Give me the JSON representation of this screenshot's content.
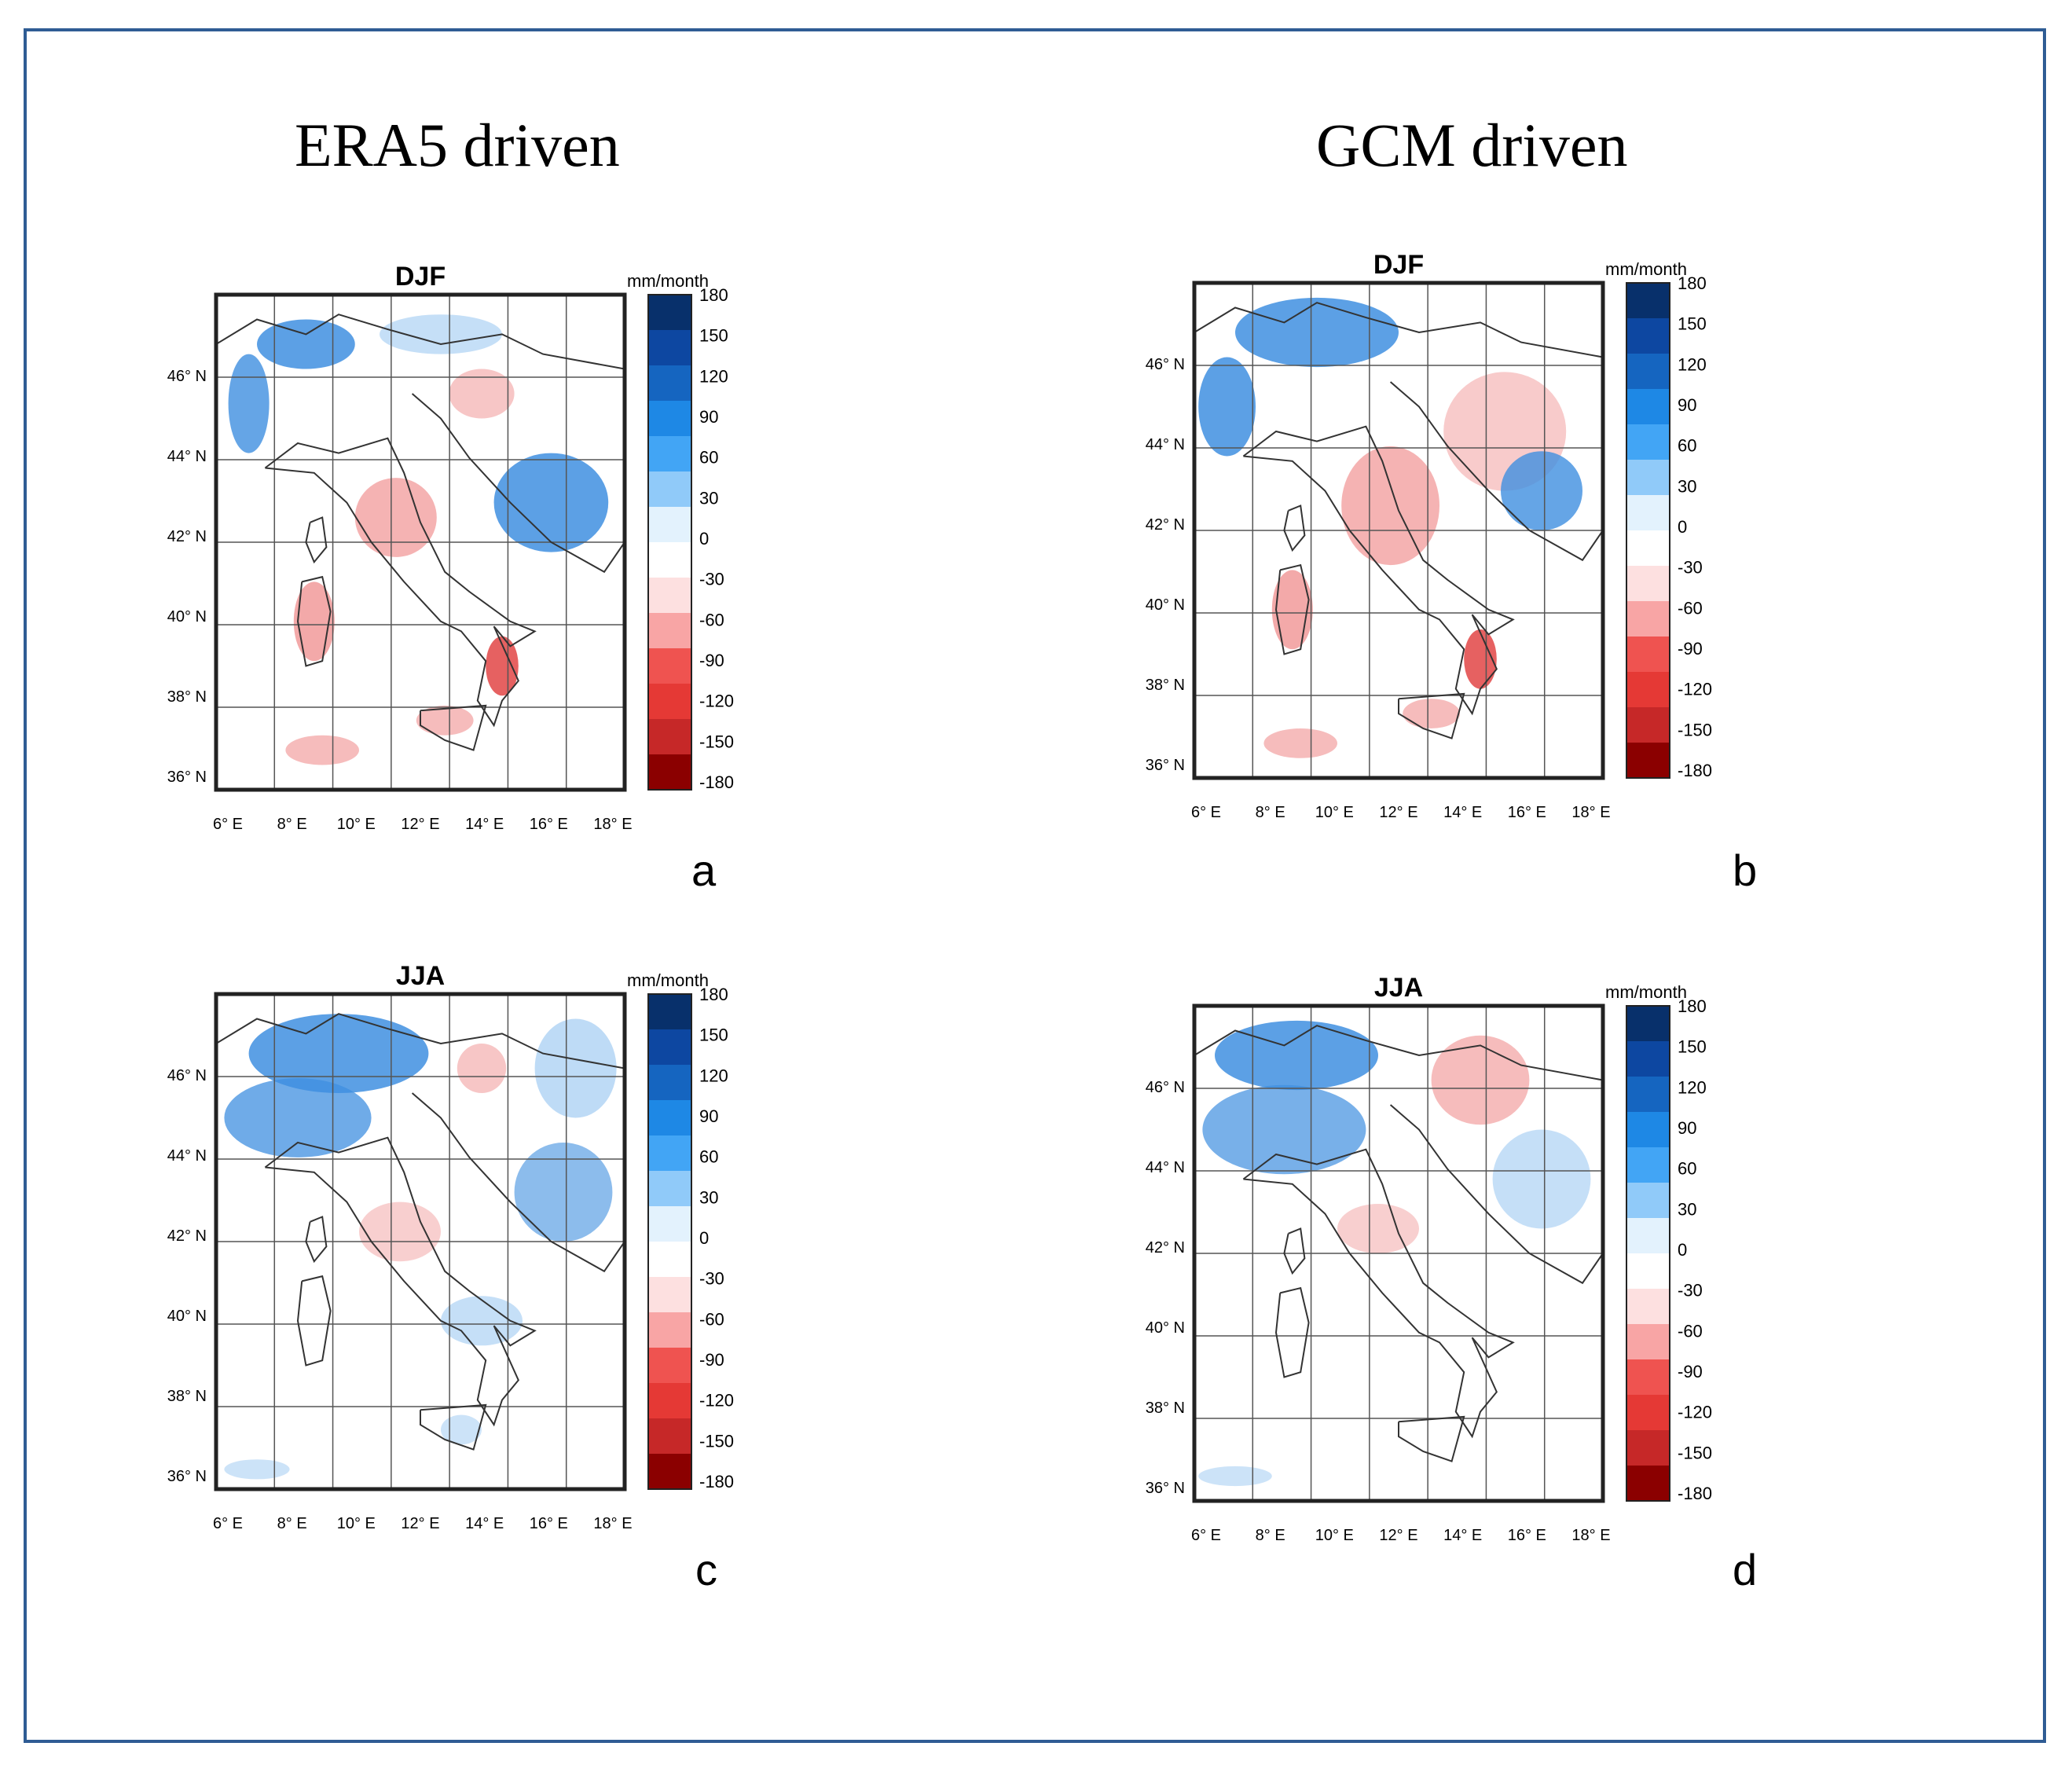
{
  "column_titles": {
    "left": "ERA5 driven",
    "right": "GCM driven"
  },
  "colorbar": {
    "unit": "mm/month",
    "ticks": [
      "180",
      "150",
      "120",
      "90",
      "60",
      "30",
      "0",
      "-30",
      "-60",
      "-90",
      "-120",
      "-150",
      "-180"
    ],
    "colors_pos": [
      "#08306b",
      "#0d47a1",
      "#1565c0",
      "#1e88e5",
      "#42a5f5",
      "#90caf9",
      "#e3f2fd"
    ],
    "colors_neg": [
      "#fde0e0",
      "#f8a5a5",
      "#ef5350",
      "#e53935",
      "#c62828",
      "#8b0000"
    ]
  },
  "axes": {
    "lat_labels": [
      "46° N",
      "44° N",
      "42° N",
      "40° N",
      "38° N",
      "36° N"
    ],
    "lon_labels": [
      "6° E",
      "8° E",
      "10° E",
      "12° E",
      "14° E",
      "16° E",
      "18° E"
    ]
  },
  "panels": [
    {
      "id": "a",
      "title": "DJF",
      "letter": "a"
    },
    {
      "id": "b",
      "title": "DJF",
      "letter": "b"
    },
    {
      "id": "c",
      "title": "JJA",
      "letter": "c"
    },
    {
      "id": "d",
      "title": "JJA",
      "letter": "d"
    }
  ],
  "map_colors": {
    "blue": "#3f8fe0",
    "light_blue": "#b7d7f5",
    "red": "#f2a0a0",
    "deep_red": "#e03a3a",
    "coast": "#333333"
  }
}
